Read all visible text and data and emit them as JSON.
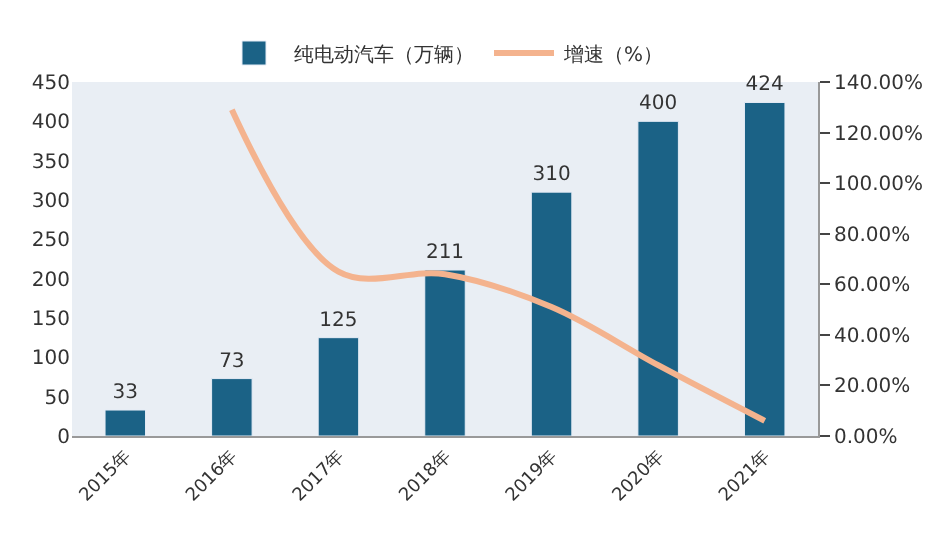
{
  "chart_data": {
    "type": "bar",
    "categories": [
      "2015年",
      "2016年",
      "2017年",
      "2018年",
      "2019年",
      "2020年",
      "2021年"
    ],
    "series": [
      {
        "name": "纯电动汽车（万辆）",
        "color": "#1b6286",
        "values": [
          33,
          73,
          125,
          211,
          310,
          400,
          424
        ],
        "value_labels": [
          "33",
          "73",
          "125",
          "211",
          "310",
          "400",
          "424"
        ]
      },
      {
        "name": "增速（%）",
        "type": "line",
        "axis": "y2",
        "color": "#f4b38e",
        "values": [
          null,
          129,
          65,
          64,
          51,
          28,
          6
        ]
      }
    ],
    "ylim": [
      0,
      450
    ],
    "yticks": [
      0,
      50,
      100,
      150,
      200,
      250,
      300,
      350,
      400,
      450
    ],
    "y2lim": [
      0,
      140
    ],
    "y2ticks": [
      {
        "value": 0,
        "label": "0.00%"
      },
      {
        "value": 20,
        "label": "20.00%"
      },
      {
        "value": 40,
        "label": "40.00%"
      },
      {
        "value": 60,
        "label": "60.00%"
      },
      {
        "value": 80,
        "label": "80.00%"
      },
      {
        "value": 100,
        "label": "100.00%"
      },
      {
        "value": 120,
        "label": "120.00%"
      },
      {
        "value": 140,
        "label": "140.00%"
      }
    ],
    "grid": false,
    "legend": "top",
    "marker": "none"
  }
}
